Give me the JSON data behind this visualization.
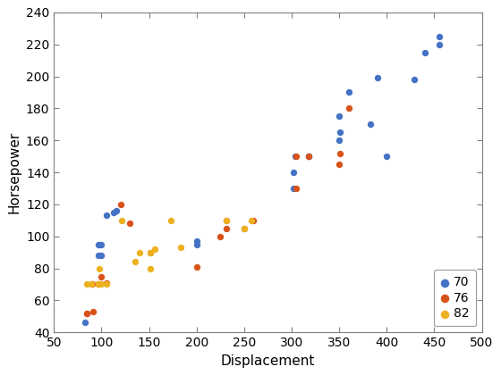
{
  "series": {
    "70": {
      "color": "#4472C4",
      "displacement": [
        83,
        97,
        97,
        98,
        100,
        100,
        105,
        113,
        116,
        200,
        200,
        302,
        302,
        304,
        318,
        318,
        350,
        350,
        351,
        360,
        383,
        390,
        400,
        429,
        440,
        455,
        455
      ],
      "horsepower": [
        46,
        88,
        95,
        95,
        88,
        95,
        113,
        115,
        116,
        95,
        97,
        130,
        140,
        150,
        150,
        150,
        160,
        175,
        165,
        190,
        170,
        199,
        150,
        198,
        215,
        220,
        225
      ]
    },
    "76": {
      "color": "#D95319",
      "displacement": [
        85,
        85,
        90,
        91,
        97,
        100,
        105,
        120,
        130,
        151,
        200,
        225,
        231,
        231,
        250,
        260,
        305,
        305,
        318,
        350,
        351,
        360
      ],
      "horsepower": [
        52,
        52,
        70,
        53,
        70,
        75,
        71,
        120,
        108,
        90,
        81,
        100,
        105,
        110,
        105,
        110,
        130,
        150,
        150,
        145,
        152,
        180
      ]
    },
    "82": {
      "color": "#EDB120",
      "displacement": [
        85,
        89,
        97,
        97,
        98,
        100,
        105,
        121,
        135,
        140,
        151,
        151,
        156,
        173,
        183,
        231,
        250,
        258
      ],
      "horsepower": [
        70,
        70,
        70,
        70,
        80,
        70,
        70,
        110,
        84,
        90,
        80,
        90,
        92,
        110,
        93,
        110,
        105,
        110
      ]
    }
  },
  "xlabel": "Displacement",
  "ylabel": "Horsepower",
  "xlim": [
    50,
    500
  ],
  "ylim": [
    40,
    240
  ],
  "xticks": [
    50,
    100,
    150,
    200,
    250,
    300,
    350,
    400,
    450,
    500
  ],
  "yticks": [
    40,
    60,
    80,
    100,
    120,
    140,
    160,
    180,
    200,
    220,
    240
  ],
  "marker_size": 28,
  "bg_color": "#ffffff",
  "spine_color": "#808080",
  "tick_label_size": 10,
  "axis_label_size": 11,
  "legend_fontsize": 10
}
